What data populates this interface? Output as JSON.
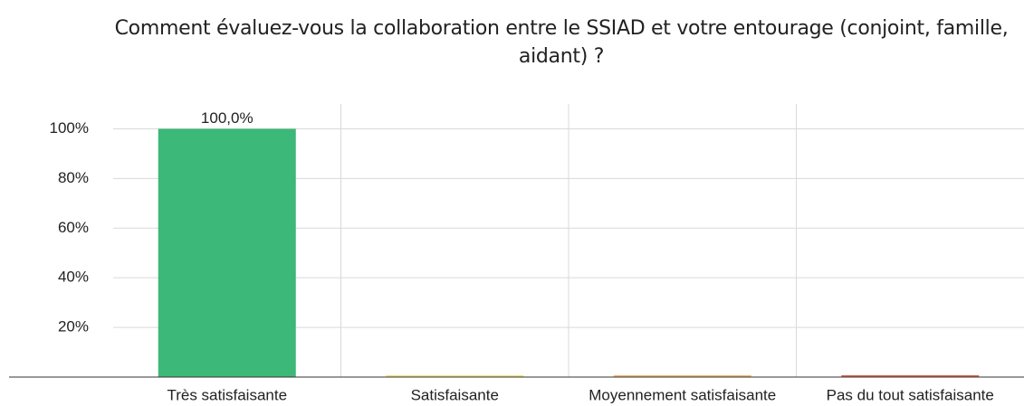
{
  "chart_data": {
    "type": "bar",
    "title": "Comment évaluez-vous la collaboration entre le SSIAD et votre entourage (conjoint, famille, aidant) ?",
    "categories": [
      "Très satisfaisante",
      "Satisfaisante",
      "Moyennement satisfaisante",
      "Pas du tout satisfaisante"
    ],
    "values": [
      100,
      0,
      0,
      0
    ],
    "value_labels": [
      "100,0%",
      null,
      null,
      null
    ],
    "colors": [
      "#3cb878",
      "#f2e27a",
      "#f5b56b",
      "#e0604f"
    ],
    "ylim": [
      0,
      110
    ],
    "yticks": [
      {
        "value": 20,
        "label": "20%"
      },
      {
        "value": 40,
        "label": "40%"
      },
      {
        "value": 60,
        "label": "60%"
      },
      {
        "value": 80,
        "label": "80%"
      },
      {
        "value": 100,
        "label": "100%"
      }
    ],
    "grid": true
  }
}
